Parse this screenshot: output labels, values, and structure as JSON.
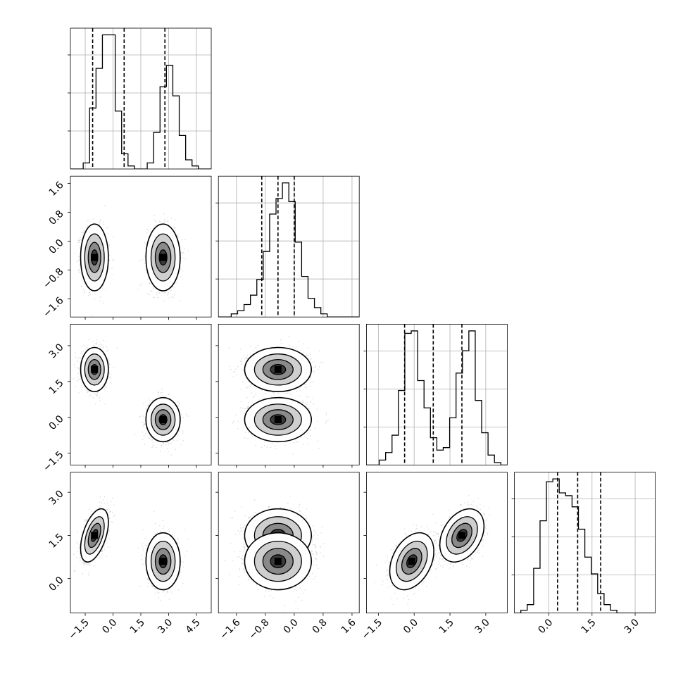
{
  "chart_data": {
    "type": "corner",
    "n_params": 4,
    "grid": true,
    "ranges": [
      [
        -2.3,
        5.3
      ],
      [
        -2.1,
        1.8
      ],
      [
        -2.0,
        3.9
      ],
      [
        -1.2,
        3.7
      ]
    ],
    "ticks": [
      {
        "values": [
          -1.5,
          0.0,
          1.5,
          3.0,
          4.5
        ],
        "labels": [
          "−1.5",
          "0.0",
          "1.5",
          "3.0",
          "4.5"
        ]
      },
      {
        "values": [
          -1.6,
          -0.8,
          0.0,
          0.8,
          1.6
        ],
        "labels": [
          "−1.6",
          "−0.8",
          "0.0",
          "0.8",
          "1.6"
        ]
      },
      {
        "values": [
          -1.5,
          0.0,
          1.5,
          3.0
        ],
        "labels": [
          "−1.5",
          "0.0",
          "1.5",
          "3.0"
        ]
      },
      {
        "values": [
          0.0,
          1.5,
          3.0
        ],
        "labels": [
          "0.0",
          "1.5",
          "3.0"
        ]
      }
    ],
    "histograms": [
      {
        "values": [
          0,
          0,
          2,
          20,
          33,
          44,
          44,
          19,
          5,
          1,
          0,
          0,
          2,
          12,
          27,
          34,
          24,
          11,
          3,
          1,
          0,
          0
        ],
        "quantiles": [
          -1.1,
          0.6,
          2.8
        ]
      },
      {
        "values": [
          0,
          0,
          1,
          2,
          4,
          7,
          12,
          21,
          33,
          38,
          43,
          37,
          24,
          13,
          6,
          3,
          1,
          0,
          0,
          0,
          0,
          0
        ],
        "quantiles": [
          -0.9,
          -0.45,
          0.0
        ]
      },
      {
        "values": [
          0,
          0,
          2,
          5,
          12,
          30,
          53,
          54,
          34,
          23,
          11,
          6,
          7,
          19,
          37,
          46,
          54,
          26,
          13,
          4,
          1,
          0
        ],
        "quantiles": [
          -0.4,
          0.8,
          2.0
        ]
      },
      {
        "values": [
          0,
          1,
          3,
          16,
          33,
          47,
          48,
          43,
          42,
          38,
          30,
          20,
          14,
          7,
          3,
          1,
          0,
          0,
          0,
          0,
          0,
          0
        ],
        "quantiles": [
          0.3,
          1.0,
          1.8
        ]
      }
    ],
    "clusters": [
      {
        "means": [
          -1.0,
          -0.45,
          2.0,
          1.5
        ],
        "sds": [
          0.34,
          0.42,
          0.42,
          0.42
        ],
        "weight": 0.5
      },
      {
        "means": [
          2.7,
          -0.45,
          -0.1,
          0.6
        ],
        "sds": [
          0.42,
          0.42,
          0.42,
          0.45
        ],
        "weight": 0.5
      }
    ],
    "correlations": [
      {
        "i": 3,
        "j": 0,
        "clusters": [
          0.5,
          0.0
        ]
      },
      {
        "i": 3,
        "j": 2,
        "clusters": [
          0.35,
          0.35
        ]
      }
    ]
  }
}
